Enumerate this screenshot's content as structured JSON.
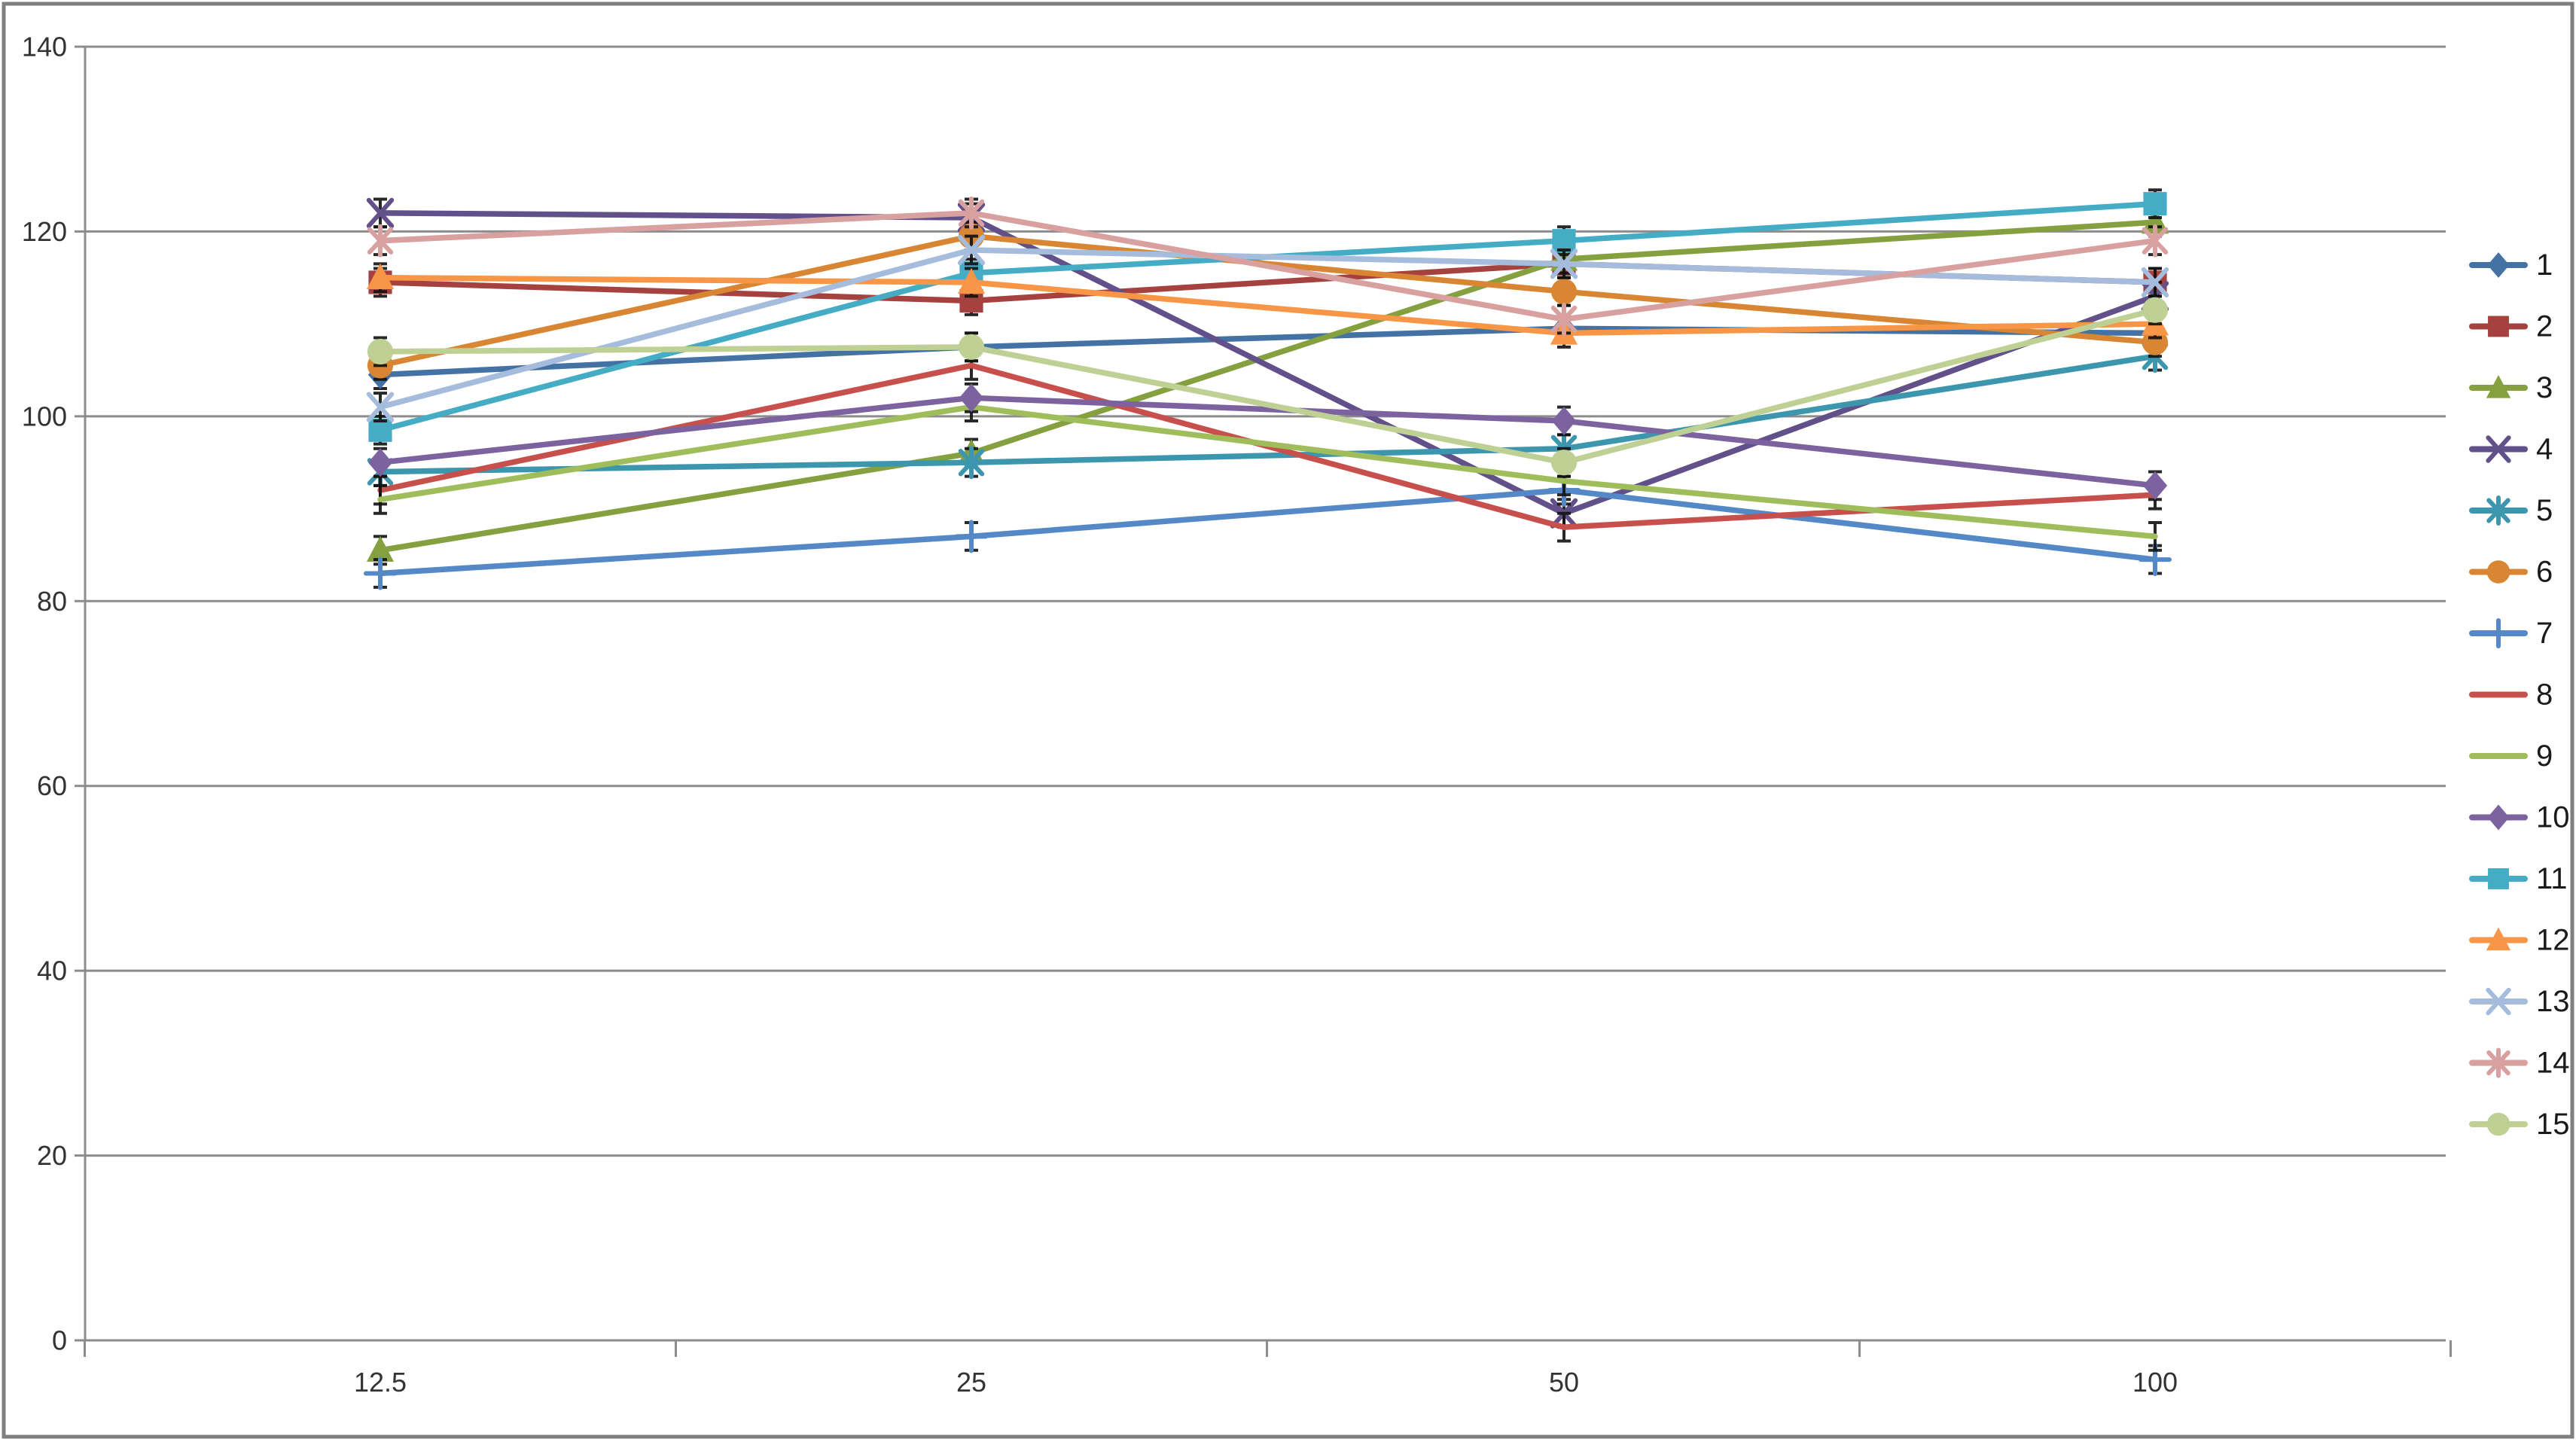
{
  "chart_data": {
    "type": "line",
    "title": "",
    "xlabel": "",
    "ylabel": "",
    "categories": [
      "12.5",
      "25",
      "50",
      "100"
    ],
    "ylim": [
      0,
      140
    ],
    "ytick_step": 20,
    "y_tick_labels": [
      "0",
      "20",
      "40",
      "60",
      "80",
      "100",
      "120",
      "140"
    ],
    "grid": true,
    "legend_position": "right",
    "error_bars": {
      "visible": true,
      "approx_half_range": 1.5
    },
    "series": [
      {
        "name": "1",
        "color": "#4472A4",
        "marker": "diamond",
        "values": [
          104.5,
          107.5,
          109.5,
          109
        ]
      },
      {
        "name": "2",
        "color": "#A5413E",
        "marker": "square",
        "values": [
          114.5,
          112.5,
          116.5,
          114.5
        ]
      },
      {
        "name": "3",
        "color": "#84A03F",
        "marker": "triangle",
        "values": [
          85.5,
          96,
          117,
          121
        ]
      },
      {
        "name": "4",
        "color": "#615089",
        "marker": "x",
        "values": [
          122,
          121.5,
          89.5,
          113
        ]
      },
      {
        "name": "5",
        "color": "#3C96AE",
        "marker": "asterisk",
        "values": [
          94,
          95,
          96.5,
          106.5
        ]
      },
      {
        "name": "6",
        "color": "#D98634",
        "marker": "circle",
        "values": [
          105.5,
          119.5,
          113.5,
          108
        ]
      },
      {
        "name": "7",
        "color": "#5588C7",
        "marker": "plus",
        "values": [
          83,
          87,
          92,
          84.5
        ]
      },
      {
        "name": "8",
        "color": "#C8504C",
        "marker": "none",
        "values": [
          92,
          105.5,
          88,
          91.5
        ]
      },
      {
        "name": "9",
        "color": "#9FBE5B",
        "marker": "none",
        "values": [
          91,
          101,
          93,
          87
        ]
      },
      {
        "name": "10",
        "color": "#7D62A0",
        "marker": "diamond",
        "values": [
          95,
          102,
          99.5,
          92.5
        ]
      },
      {
        "name": "11",
        "color": "#45ACC5",
        "marker": "square",
        "values": [
          98.5,
          115.5,
          119,
          123
        ]
      },
      {
        "name": "12",
        "color": "#F79646",
        "marker": "triangle",
        "values": [
          115,
          114.5,
          109,
          110
        ]
      },
      {
        "name": "13",
        "color": "#A5BCDC",
        "marker": "x",
        "values": [
          101,
          118,
          116.5,
          114.5
        ]
      },
      {
        "name": "14",
        "color": "#D9A0A0",
        "marker": "asterisk",
        "values": [
          119,
          122,
          110.5,
          119
        ]
      },
      {
        "name": "15",
        "color": "#BFD095",
        "marker": "circle",
        "values": [
          107,
          107.5,
          95,
          111.5
        ]
      }
    ],
    "colors": {
      "gridline": "#8C8C8C",
      "axis": "#8C8C8C",
      "tick_label": "#333333",
      "legend_label": "#1A1A1A",
      "error_bar": "#111111",
      "outer_border": "#7F7F7F",
      "background": "#FFFFFF"
    }
  }
}
